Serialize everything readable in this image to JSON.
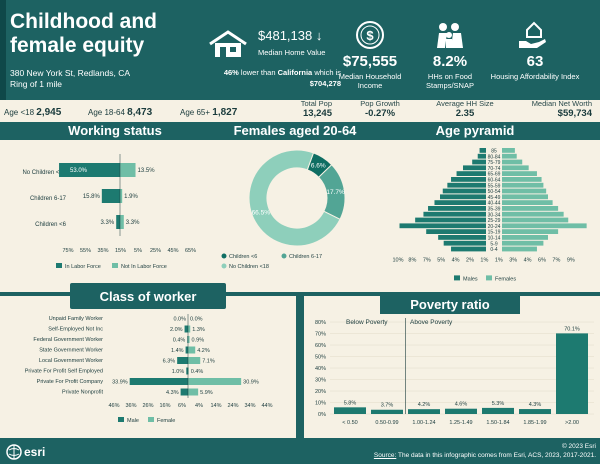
{
  "header": {
    "title": "Childhood and female equity",
    "address": "380 New York St, Redlands, CA",
    "ring": "Ring of 1 mile",
    "median_home_value": "$481,138",
    "median_home_value_label": "Median Home Value",
    "comparison": "46% lower than California which is $704,278",
    "comparison_pct": "46%",
    "comparison_text": "lower than",
    "comparison_place": "California",
    "comparison_which": "which is",
    "comparison_value": "$704,278",
    "stats": [
      {
        "icon": "dollar-coin-icon",
        "value": "$75,555",
        "label": "Median Household Income"
      },
      {
        "icon": "family-icon",
        "value": "8.2%",
        "label": "HHs on Food Stamps/SNAP"
      },
      {
        "icon": "hand-house-icon",
        "value": "63",
        "label": "Housing Affordability Index"
      }
    ]
  },
  "age_band": {
    "age_lt18_label": "Age <18",
    "age_lt18": "2,945",
    "age_18_64_label": "Age 18-64",
    "age_18_64": "8,473",
    "age_65_label": "Age 65+",
    "age_65": "1,827",
    "total_pop_label": "Total Pop",
    "total_pop": "13,245",
    "pop_growth_label": "Pop Growth",
    "pop_growth": "-0.27%",
    "avg_hh_label": "Average HH Size",
    "avg_hh": "2.35",
    "net_worth_label": "Median Net Worth",
    "net_worth": "$59,734"
  },
  "sections": {
    "working": "Working status",
    "females": "Females aged 20-64",
    "pyramid": "Age pyramid",
    "class": "Class of worker",
    "poverty": "Poverty ratio"
  },
  "footer": {
    "copyright": "© 2023 Esri",
    "source_label": "Source:",
    "source": "The data in this infographic comes from Esri, ACS, 2023, 2017-2021.",
    "logo": "esri"
  },
  "chart_data": [
    {
      "type": "bar",
      "id": "working",
      "categories": [
        "No Children <18",
        "Children 6-17",
        "Children <6"
      ],
      "series": [
        {
          "name": "In Labor Force",
          "values": [
            53.0,
            15.8,
            3.3
          ],
          "color": "#1d7a70"
        },
        {
          "name": "Not In Labor Force",
          "values": [
            13.5,
            1.9,
            3.3
          ],
          "color": "#6fbea6"
        }
      ],
      "ticks": [
        "75%",
        "55%",
        "35%",
        "15%",
        "5%",
        "25%",
        "45%",
        "65%"
      ]
    },
    {
      "type": "pie",
      "id": "females",
      "slices": [
        {
          "label": "Children <6",
          "value": 6.6,
          "color": "#0f6e63"
        },
        {
          "label": "Children 6-17",
          "value": 17.7,
          "color": "#52a595"
        },
        {
          "label": "No Children <18",
          "value": 66.5,
          "color": "#8ecfbb"
        }
      ]
    },
    {
      "type": "bar",
      "id": "pyramid",
      "categories": [
        "85",
        "80-84",
        "75-79",
        "70-74",
        "65-69",
        "60-64",
        "55-59",
        "50-54",
        "45-49",
        "40-44",
        "35-39",
        "30-34",
        "25-29",
        "20-24",
        "15-19",
        "10-14",
        "5-9",
        "0-4"
      ],
      "series": [
        {
          "name": "Males",
          "values": [
            0.7,
            0.9,
            1.5,
            2.5,
            3.2,
            3.8,
            4.2,
            4.7,
            5.0,
            5.6,
            6.3,
            6.8,
            7.7,
            9.4,
            6.5,
            5.2,
            4.6,
            3.8
          ],
          "color": "#1d7a70"
        },
        {
          "name": "Females",
          "values": [
            1.4,
            1.6,
            2.2,
            2.9,
            3.8,
            4.3,
            4.5,
            4.8,
            5.0,
            5.5,
            6.1,
            6.7,
            7.2,
            9.2,
            6.1,
            5.0,
            4.5,
            3.8
          ],
          "color": "#6fbea6"
        }
      ],
      "ticks": [
        "10%",
        "8%",
        "7%",
        "5%",
        "4%",
        "2%",
        "1%",
        "1%",
        "3%",
        "4%",
        "6%",
        "7%",
        "9%"
      ]
    },
    {
      "type": "bar",
      "id": "class",
      "categories": [
        "Unpaid Family Worker",
        "Self-Employed Not Inc",
        "Federal Government Worker",
        "State Government Worker",
        "Local Government Worker",
        "Private For Profit Self Employed",
        "Private For Profit Company",
        "Private Nonprofit"
      ],
      "series": [
        {
          "name": "Male",
          "values": [
            0.0,
            2.0,
            0.4,
            1.4,
            6.3,
            1.0,
            33.9,
            4.3
          ],
          "color": "#1d7a70"
        },
        {
          "name": "Female",
          "values": [
            0.0,
            1.3,
            0.9,
            4.2,
            7.1,
            0.4,
            30.9,
            5.9
          ],
          "color": "#6fbea6"
        }
      ],
      "ticks": [
        "46%",
        "36%",
        "26%",
        "16%",
        "6%",
        "4%",
        "14%",
        "24%",
        "34%",
        "44%"
      ]
    },
    {
      "type": "bar",
      "id": "poverty",
      "categories": [
        "< 0.50",
        "0.50-0.99",
        "1.00-1.24",
        "1.25-1.49",
        "1.50-1.84",
        "1.85-1.99",
        ">2.00"
      ],
      "values": [
        5.8,
        3.7,
        4.2,
        4.6,
        5.3,
        4.3,
        70.1
      ],
      "ylim": [
        0,
        80
      ],
      "yticks": [
        "0%",
        "10%",
        "20%",
        "30%",
        "40%",
        "50%",
        "60%",
        "70%",
        "80%"
      ],
      "annotations": [
        "Below Poverty",
        "Above Poverty"
      ],
      "color": "#1d7a70"
    }
  ]
}
